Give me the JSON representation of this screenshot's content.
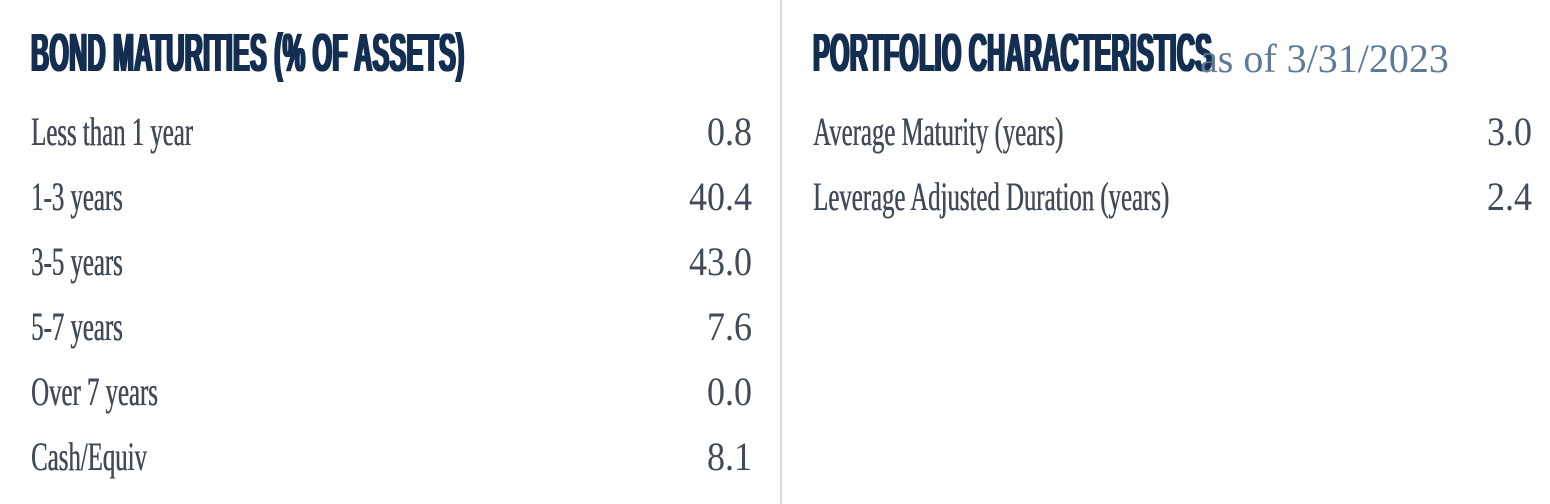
{
  "bond_maturities": {
    "title": "BOND MATURITIES (% OF ASSETS)",
    "rows": [
      {
        "label": "Less than 1 year",
        "value": "0.8"
      },
      {
        "label": "1-3 years",
        "value": "40.4"
      },
      {
        "label": "3-5 years",
        "value": "43.0"
      },
      {
        "label": "5-7 years",
        "value": "7.6"
      },
      {
        "label": "Over 7 years",
        "value": "0.0"
      },
      {
        "label": "Cash/Equiv",
        "value": "8.1"
      }
    ]
  },
  "portfolio_characteristics": {
    "title": "PORTFOLIO CHARACTERISTICS",
    "as_of": "as of 3/31/2023",
    "rows": [
      {
        "label": "Average Maturity (years)",
        "value": "3.0"
      },
      {
        "label": "Leverage Adjusted Duration (years)",
        "value": "2.4"
      }
    ]
  },
  "chart_data": {
    "type": "table",
    "tables": [
      {
        "title": "BOND MATURITIES (% OF ASSETS)",
        "categories": [
          "Less than 1 year",
          "1-3 years",
          "3-5 years",
          "5-7 years",
          "Over 7 years",
          "Cash/Equiv"
        ],
        "values": [
          0.8,
          40.4,
          43.0,
          7.6,
          0.0,
          8.1
        ]
      },
      {
        "title": "PORTFOLIO CHARACTERISTICS",
        "subtitle": "as of 3/31/2023",
        "categories": [
          "Average Maturity (years)",
          "Leverage Adjusted Duration (years)"
        ],
        "values": [
          3.0,
          2.4
        ]
      }
    ]
  },
  "colors": {
    "heading_navy": "#142e52",
    "body_text": "#404b57",
    "as_of_text": "#5e7a97",
    "divider": "#d3dce0",
    "page_bg": "#ffffff"
  }
}
